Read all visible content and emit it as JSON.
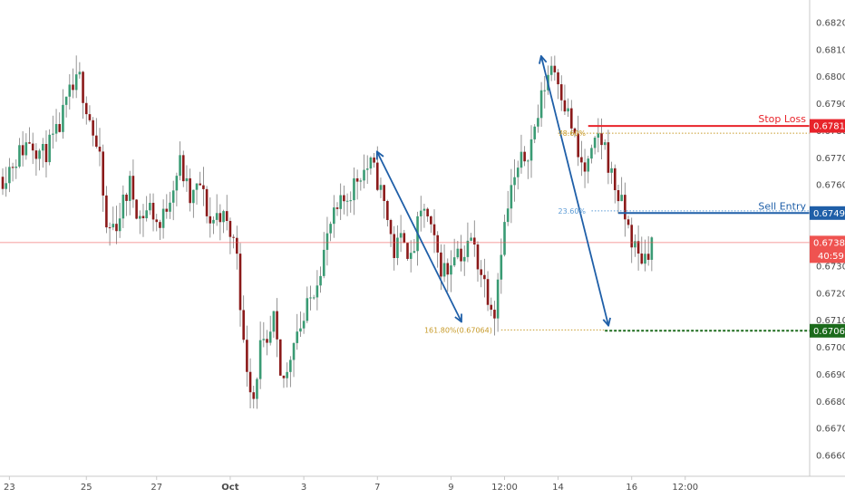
{
  "chart_data": {
    "type": "candlestick",
    "title": "",
    "y_axis": {
      "ylim": [
        0.6655,
        0.6827
      ],
      "ticks": [
        "0.68200",
        "0.68100",
        "0.68000",
        "0.67900",
        "0.67800",
        "0.67700",
        "0.67600",
        "0.67500",
        "0.67400",
        "0.67300",
        "0.67200",
        "0.67100",
        "0.67000",
        "0.66900",
        "0.66800",
        "0.66700",
        "0.66600"
      ]
    },
    "x_axis": {
      "tick_labels": [
        {
          "label": "23",
          "bar": 2
        },
        {
          "label": "25",
          "bar": 25
        },
        {
          "label": "27",
          "bar": 46
        },
        {
          "label": "Oct",
          "bar": 68
        },
        {
          "label": "3",
          "bar": 90
        },
        {
          "label": "7",
          "bar": 112
        },
        {
          "label": "9",
          "bar": 134
        },
        {
          "label": "12:00",
          "bar": 150
        },
        {
          "label": "14",
          "bar": 166
        },
        {
          "label": "16",
          "bar": 188
        },
        {
          "label": "12:00",
          "bar": 204
        }
      ]
    },
    "price_path": [
      [
        0,
        0.6763
      ],
      [
        4,
        0.677
      ],
      [
        8,
        0.6777
      ],
      [
        12,
        0.6771
      ],
      [
        16,
        0.6778
      ],
      [
        20,
        0.6793
      ],
      [
        23,
        0.6799
      ],
      [
        26,
        0.6785
      ],
      [
        29,
        0.6768
      ],
      [
        31,
        0.6743
      ],
      [
        34,
        0.6746
      ],
      [
        38,
        0.676
      ],
      [
        41,
        0.6748
      ],
      [
        44,
        0.6752
      ],
      [
        47,
        0.6744
      ],
      [
        50,
        0.6757
      ],
      [
        53,
        0.6768
      ],
      [
        56,
        0.6754
      ],
      [
        59,
        0.676
      ],
      [
        62,
        0.6746
      ],
      [
        65,
        0.675
      ],
      [
        68,
        0.6742
      ],
      [
        70,
        0.6736
      ],
      [
        72,
        0.67
      ],
      [
        74,
        0.6687
      ],
      [
        75,
        0.6682
      ],
      [
        77,
        0.67
      ],
      [
        79,
        0.6698
      ],
      [
        81,
        0.671
      ],
      [
        83,
        0.6687
      ],
      [
        85,
        0.669
      ],
      [
        87,
        0.6705
      ],
      [
        90,
        0.671
      ],
      [
        93,
        0.6722
      ],
      [
        96,
        0.6735
      ],
      [
        98,
        0.6745
      ],
      [
        101,
        0.6752
      ],
      [
        104,
        0.6758
      ],
      [
        107,
        0.6765
      ],
      [
        110,
        0.6767
      ],
      [
        112,
        0.6762
      ],
      [
        115,
        0.6748
      ],
      [
        117,
        0.6735
      ],
      [
        120,
        0.6742
      ],
      [
        122,
        0.6731
      ],
      [
        124,
        0.6744
      ],
      [
        126,
        0.6752
      ],
      [
        128,
        0.6742
      ],
      [
        131,
        0.673
      ],
      [
        133,
        0.6728
      ],
      [
        135,
        0.6737
      ],
      [
        138,
        0.6734
      ],
      [
        140,
        0.674
      ],
      [
        143,
        0.6728
      ],
      [
        145,
        0.672
      ],
      [
        147,
        0.6714
      ],
      [
        149,
        0.6738
      ],
      [
        152,
        0.6758
      ],
      [
        155,
        0.6768
      ],
      [
        158,
        0.6776
      ],
      [
        160,
        0.6786
      ],
      [
        162,
        0.6797
      ],
      [
        164,
        0.6805
      ],
      [
        166,
        0.68
      ],
      [
        168,
        0.679
      ],
      [
        170,
        0.6782
      ],
      [
        172,
        0.677
      ],
      [
        174,
        0.6765
      ],
      [
        176,
        0.677
      ],
      [
        178,
        0.6778
      ],
      [
        180,
        0.6774
      ],
      [
        182,
        0.6763
      ],
      [
        184,
        0.6756
      ],
      [
        186,
        0.6748
      ],
      [
        188,
        0.674
      ],
      [
        190,
        0.6733
      ],
      [
        192,
        0.6734
      ],
      [
        194,
        0.6739
      ]
    ],
    "levels": {
      "current": {
        "price": 0.67387,
        "label": "0.67387",
        "countdown": "40:59",
        "color": "#ef5350"
      },
      "stop_loss": {
        "price": 0.67818,
        "label": "0.67818",
        "text": "Stop Loss",
        "color": "#e8232a"
      },
      "sell_entry": {
        "price": 0.67496,
        "label": "0.67496",
        "text": "Sell Entry",
        "color": "#1f5fa8"
      },
      "take_profit": {
        "price": 0.67061,
        "label": "0.67061",
        "color": "#1c6b1c"
      }
    },
    "fib_labels": {
      "fib_786": {
        "text": "78.60%",
        "price": 0.67791,
        "bar": 166,
        "color": "#c79a28"
      },
      "fib_236": {
        "text": "23.60%",
        "price": 0.67504,
        "bar": 166,
        "color": "#5b9bd5"
      },
      "fib_1618": {
        "text": "161.80%(0.67064)",
        "price": 0.67064,
        "bar": 126,
        "color": "#c79a28"
      }
    },
    "arrows": [
      {
        "from": [
          112,
          0.6772
        ],
        "to": [
          137,
          0.67097
        ],
        "color": "#1f5fa8"
      },
      {
        "from": [
          161,
          0.68073
        ],
        "to": [
          181,
          0.67083
        ],
        "color": "#1f5fa8"
      }
    ],
    "colors": {
      "up": "#3a9b74",
      "down": "#8b1a1a",
      "wick": "#7a7a7a",
      "axis_text": "#4a4a4a"
    }
  }
}
